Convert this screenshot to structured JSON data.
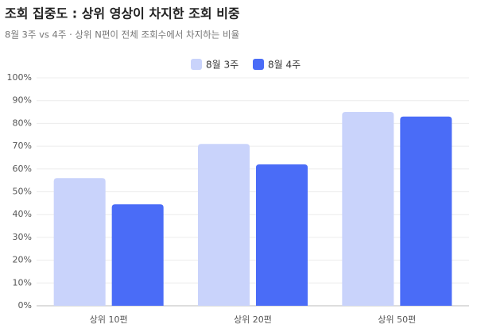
{
  "chart_data": {
    "type": "bar",
    "title": "조회 집중도 : 상위 영상이 차지한 조회 비중",
    "subtitle": "8월 3주 vs 4주 · 상위 N편이 전체 조회수에서 차지하는 비율",
    "categories": [
      "상위 10편",
      "상위 20편",
      "상위 50편"
    ],
    "series": [
      {
        "name": "8월 3주",
        "color": "#c9d3fb",
        "values": [
          56,
          71,
          85
        ]
      },
      {
        "name": "8월 4주",
        "color": "#4a6cf7",
        "values": [
          44.5,
          62,
          83
        ]
      }
    ],
    "ylim": [
      0,
      100
    ],
    "yticks": [
      {
        "value": 0,
        "label": "0%"
      },
      {
        "value": 10,
        "label": "10%"
      },
      {
        "value": 20,
        "label": "20%"
      },
      {
        "value": 30,
        "label": "30%"
      },
      {
        "value": 40,
        "label": "40%"
      },
      {
        "value": 50,
        "label": "50%"
      },
      {
        "value": 60,
        "label": "60%"
      },
      {
        "value": 70,
        "label": "70%"
      },
      {
        "value": 80,
        "label": "80%"
      },
      {
        "value": 90,
        "label": "90%"
      },
      {
        "value": 100,
        "label": "100%"
      }
    ],
    "grid": true,
    "legend": "top"
  }
}
